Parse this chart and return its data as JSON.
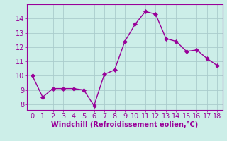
{
  "x": [
    0,
    1,
    2,
    3,
    4,
    5,
    6,
    7,
    8,
    9,
    10,
    11,
    12,
    13,
    14,
    15,
    16,
    17,
    18
  ],
  "y": [
    10.0,
    8.5,
    9.1,
    9.1,
    9.1,
    9.0,
    7.9,
    10.1,
    10.4,
    12.4,
    13.6,
    14.5,
    14.3,
    12.6,
    12.4,
    11.7,
    11.8,
    11.2,
    10.7
  ],
  "line_color": "#990099",
  "marker_color": "#990099",
  "background_color": "#cceee8",
  "grid_color": "#aacccc",
  "xlabel": "Windchill (Refroidissement éolien,°C)",
  "xlabel_color": "#990099",
  "ylim": [
    7.6,
    15.0
  ],
  "xlim": [
    -0.5,
    18.5
  ],
  "yticks": [
    8,
    9,
    10,
    11,
    12,
    13,
    14
  ],
  "xticks": [
    0,
    1,
    2,
    3,
    4,
    5,
    6,
    7,
    8,
    9,
    10,
    11,
    12,
    13,
    14,
    15,
    16,
    17,
    18
  ],
  "tick_color": "#990099",
  "tick_label_color": "#990099",
  "spine_color": "#990099",
  "marker_size": 3,
  "line_width": 1.0,
  "tick_fontsize": 7,
  "xlabel_fontsize": 7
}
